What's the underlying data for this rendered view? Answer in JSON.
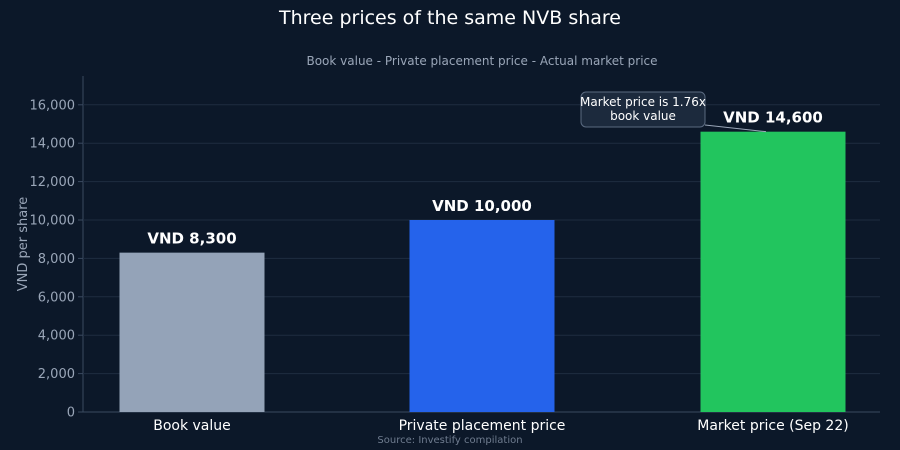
{
  "chart_data": {
    "type": "bar",
    "title": "Three prices of the same NVB share",
    "subtitle": "Book value - Private placement price - Actual market price",
    "ylabel": "VND per share",
    "xlabel": "",
    "categories": [
      "Book value",
      "Private placement price",
      "Market price (Sep 22)"
    ],
    "values": [
      8300,
      10000,
      14600
    ],
    "value_labels": [
      "VND 8,300",
      "VND 10,000",
      "VND 14,600"
    ],
    "colors": [
      "#94a3b8",
      "#2563eb",
      "#22c55e"
    ],
    "ylim": [
      0,
      17500
    ],
    "yticks": [
      0,
      2000,
      4000,
      6000,
      8000,
      10000,
      12000,
      14000,
      16000
    ],
    "ytick_labels": [
      "0",
      "2,000",
      "4,000",
      "6,000",
      "8,000",
      "10,000",
      "12,000",
      "14,000",
      "16,000"
    ],
    "grid": true,
    "annotation": {
      "line1": "Market price is 1.76x",
      "line2": "book value",
      "target_index": 2
    },
    "source": "Source: Investify compilation"
  },
  "style": {
    "background": "#0c1829",
    "text_color": "#ffffff",
    "muted_text_color": "#9aa6b8",
    "grid_color": "#1e2c40",
    "axis_color": "#3a4a60",
    "annotation_bg": "#1c2a3d",
    "annotation_border": "#5a6a80"
  }
}
